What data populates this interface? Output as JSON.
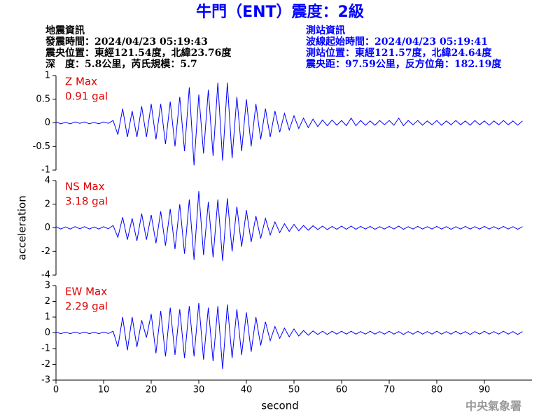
{
  "header": {
    "title": "牛門（ENT）震度：2級",
    "left": [
      "地震資訊",
      "發震時間：2024/04/23 05:19:43",
      "震央位置：東經121.54度，北緯23.76度",
      "深　度：5.8公里，芮氏規模：5.7"
    ],
    "right": [
      "測站資訊",
      "波線起始時間：2024/04/23 05:19:41",
      "測站位置：東經121.57度，北緯24.64度",
      "震央距：97.59公里，反方位角：182.19度"
    ]
  },
  "footer": "中央氣象署",
  "chart_data": [
    {
      "type": "line",
      "max_label": "Z Max",
      "max_value": "0.91 gal",
      "xlim": [
        0,
        100
      ],
      "ylim": [
        -1,
        1
      ],
      "yticks": [
        -1,
        -0.5,
        0,
        0.5,
        1
      ],
      "x": [
        0,
        1,
        2,
        3,
        4,
        5,
        6,
        7,
        8,
        9,
        10,
        11,
        12,
        13,
        14,
        15,
        16,
        17,
        18,
        19,
        20,
        21,
        22,
        23,
        24,
        25,
        26,
        27,
        28,
        29,
        30,
        31,
        32,
        33,
        34,
        35,
        36,
        37,
        38,
        39,
        40,
        41,
        42,
        43,
        44,
        45,
        46,
        47,
        48,
        49,
        50,
        51,
        52,
        53,
        54,
        55,
        56,
        57,
        58,
        59,
        60,
        61,
        62,
        63,
        64,
        65,
        66,
        67,
        68,
        69,
        70,
        71,
        72,
        73,
        74,
        75,
        76,
        77,
        78,
        79,
        80,
        81,
        82,
        83,
        84,
        85,
        86,
        87,
        88,
        89,
        90,
        91,
        92,
        93,
        94,
        95,
        96,
        97,
        98
      ],
      "series": [
        {
          "color": "#0000ff",
          "values": [
            0.02,
            -0.02,
            0.01,
            -0.02,
            0.02,
            -0.01,
            0.02,
            -0.02,
            0.01,
            -0.02,
            0.02,
            -0.01,
            0.05,
            -0.25,
            0.3,
            -0.3,
            0.25,
            -0.3,
            0.35,
            -0.3,
            0.4,
            -0.35,
            0.4,
            -0.45,
            0.45,
            -0.5,
            0.55,
            -0.6,
            0.75,
            -0.9,
            0.6,
            -0.65,
            0.7,
            -0.7,
            0.85,
            -0.8,
            0.85,
            -0.75,
            0.55,
            -0.6,
            0.5,
            -0.5,
            0.4,
            -0.35,
            0.3,
            -0.3,
            0.25,
            -0.2,
            0.2,
            -0.15,
            0.15,
            -0.12,
            0.1,
            -0.1,
            0.08,
            -0.08,
            0.06,
            -0.06,
            0.06,
            -0.05,
            0.05,
            -0.06,
            0.1,
            -0.06,
            0.05,
            -0.05,
            0.04,
            -0.05,
            0.05,
            -0.04,
            0.05,
            -0.05,
            0.1,
            -0.06,
            0.05,
            -0.04,
            0.05,
            -0.05,
            0.04,
            -0.04,
            0.05,
            -0.05,
            0.04,
            -0.04,
            0.05,
            -0.04,
            0.04,
            -0.05,
            0.05,
            -0.04,
            0.04,
            -0.05,
            0.04,
            -0.04,
            0.05,
            -0.04,
            0.04,
            -0.05,
            0.04
          ]
        }
      ]
    },
    {
      "type": "line",
      "max_label": "NS Max",
      "max_value": "3.18 gal",
      "ylabel": "acceleration",
      "xlim": [
        0,
        100
      ],
      "ylim": [
        -4,
        4
      ],
      "yticks": [
        -4,
        -2,
        0,
        2,
        4
      ],
      "x": [
        0,
        1,
        2,
        3,
        4,
        5,
        6,
        7,
        8,
        9,
        10,
        11,
        12,
        13,
        14,
        15,
        16,
        17,
        18,
        19,
        20,
        21,
        22,
        23,
        24,
        25,
        26,
        27,
        28,
        29,
        30,
        31,
        32,
        33,
        34,
        35,
        36,
        37,
        38,
        39,
        40,
        41,
        42,
        43,
        44,
        45,
        46,
        47,
        48,
        49,
        50,
        51,
        52,
        53,
        54,
        55,
        56,
        57,
        58,
        59,
        60,
        61,
        62,
        63,
        64,
        65,
        66,
        67,
        68,
        69,
        70,
        71,
        72,
        73,
        74,
        75,
        76,
        77,
        78,
        79,
        80,
        81,
        82,
        83,
        84,
        85,
        86,
        87,
        88,
        89,
        90,
        91,
        92,
        93,
        94,
        95,
        96,
        97,
        98
      ],
      "series": [
        {
          "color": "#0000ff",
          "values": [
            0.1,
            -0.1,
            0.08,
            -0.1,
            0.1,
            -0.08,
            0.1,
            -0.1,
            0.08,
            -0.1,
            0.1,
            -0.08,
            0.2,
            -0.8,
            0.9,
            -1.0,
            0.8,
            -1.1,
            1.2,
            -1.0,
            1.1,
            -1.3,
            1.4,
            -1.5,
            1.6,
            -1.8,
            2.0,
            -2.2,
            2.4,
            -2.7,
            3.1,
            -2.3,
            2.2,
            -2.5,
            2.4,
            -2.8,
            2.5,
            -2.0,
            1.8,
            -1.6,
            1.5,
            -1.2,
            1.0,
            -0.9,
            0.8,
            -0.6,
            0.5,
            -0.4,
            0.35,
            -0.3,
            0.3,
            -0.25,
            0.2,
            -0.2,
            0.18,
            -0.15,
            0.15,
            -0.15,
            0.12,
            -0.12,
            0.15,
            -0.12,
            0.15,
            -0.12,
            0.12,
            -0.1,
            0.12,
            -0.12,
            0.1,
            -0.1,
            0.12,
            -0.1,
            0.15,
            -0.12,
            0.1,
            -0.1,
            0.12,
            -0.1,
            0.1,
            -0.1,
            0.12,
            -0.1,
            0.1,
            -0.12,
            0.1,
            -0.1,
            0.12,
            -0.1,
            0.1,
            -0.1,
            0.12,
            -0.1,
            0.1,
            -0.1,
            0.12,
            -0.1,
            0.1,
            -0.12,
            0.1
          ]
        }
      ]
    },
    {
      "type": "line",
      "max_label": "EW Max",
      "max_value": "2.29 gal",
      "xlabel": "second",
      "xlim": [
        0,
        100
      ],
      "ylim": [
        -3,
        3
      ],
      "yticks": [
        -3,
        -2,
        -1,
        0,
        1,
        2,
        3
      ],
      "xticks": [
        0,
        10,
        20,
        30,
        40,
        50,
        60,
        70,
        80,
        90
      ],
      "x": [
        0,
        1,
        2,
        3,
        4,
        5,
        6,
        7,
        8,
        9,
        10,
        11,
        12,
        13,
        14,
        15,
        16,
        17,
        18,
        19,
        20,
        21,
        22,
        23,
        24,
        25,
        26,
        27,
        28,
        29,
        30,
        31,
        32,
        33,
        34,
        35,
        36,
        37,
        38,
        39,
        40,
        41,
        42,
        43,
        44,
        45,
        46,
        47,
        48,
        49,
        50,
        51,
        52,
        53,
        54,
        55,
        56,
        57,
        58,
        59,
        60,
        61,
        62,
        63,
        64,
        65,
        66,
        67,
        68,
        69,
        70,
        71,
        72,
        73,
        74,
        75,
        76,
        77,
        78,
        79,
        80,
        81,
        82,
        83,
        84,
        85,
        86,
        87,
        88,
        89,
        90,
        91,
        92,
        93,
        94,
        95,
        96,
        97,
        98
      ],
      "series": [
        {
          "color": "#0000ff",
          "values": [
            0.05,
            -0.05,
            0.04,
            -0.05,
            0.05,
            -0.04,
            0.05,
            -0.05,
            0.04,
            -0.05,
            0.05,
            -0.04,
            0.1,
            -0.9,
            1.0,
            -1.1,
            1.0,
            -0.9,
            0.8,
            -0.3,
            1.2,
            -1.3,
            1.4,
            -1.5,
            1.6,
            -1.4,
            1.5,
            -1.6,
            1.7,
            -1.5,
            1.9,
            -1.7,
            1.6,
            -1.8,
            1.7,
            -2.3,
            1.8,
            -1.6,
            1.5,
            -1.4,
            1.3,
            -1.2,
            1.0,
            -0.8,
            0.7,
            -0.5,
            0.4,
            -0.35,
            0.3,
            -0.25,
            0.25,
            -0.2,
            0.15,
            -0.15,
            0.12,
            -0.1,
            0.1,
            -0.1,
            0.1,
            -0.08,
            0.1,
            -0.08,
            0.1,
            -0.08,
            0.08,
            -0.08,
            0.1,
            -0.08,
            0.08,
            -0.08,
            0.1,
            -0.08,
            0.08,
            -0.1,
            0.08,
            -0.08,
            0.1,
            -0.08,
            0.08,
            -0.08,
            0.1,
            -0.08,
            0.08,
            -0.08,
            0.1,
            -0.08,
            0.08,
            -0.1,
            0.08,
            -0.08,
            0.1,
            -0.08,
            0.08,
            -0.08,
            0.1,
            -0.08,
            0.08,
            -0.1,
            0.08
          ]
        }
      ]
    }
  ]
}
